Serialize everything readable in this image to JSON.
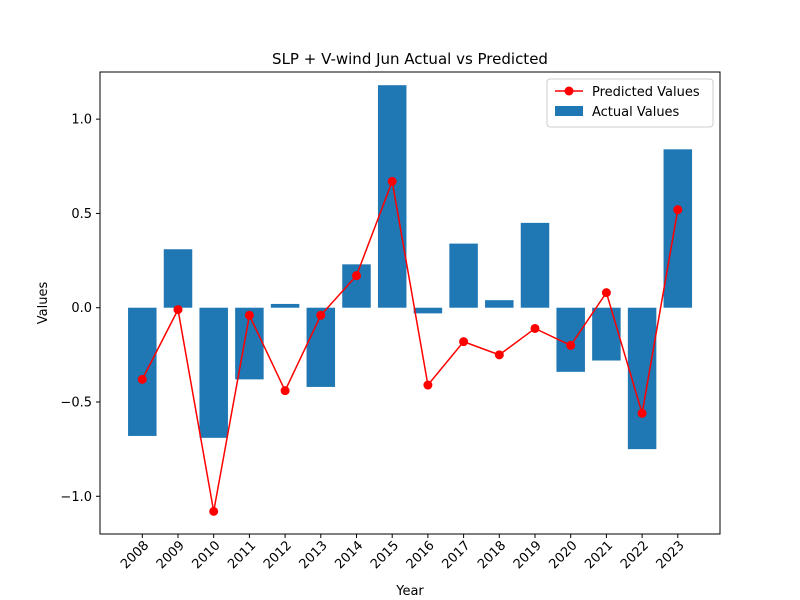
{
  "chart_data": {
    "type": "bar",
    "title": "SLP + V-wind Jun Actual vs Predicted",
    "xlabel": "Year",
    "ylabel": "Values",
    "ylim": [
      -1.2,
      1.25
    ],
    "yticks": [
      -1.0,
      -0.5,
      0.0,
      0.5,
      1.0
    ],
    "ytick_labels": [
      "−1.0",
      "−0.5",
      "0.0",
      "0.5",
      "1.0"
    ],
    "grid": false,
    "legend_position": "top-right",
    "categories": [
      "2008",
      "2009",
      "2010",
      "2011",
      "2012",
      "2013",
      "2014",
      "2015",
      "2016",
      "2017",
      "2018",
      "2019",
      "2020",
      "2021",
      "2022",
      "2023"
    ],
    "series": [
      {
        "name": "Actual Values",
        "kind": "bar",
        "color": "#1f77b4",
        "values": [
          -0.68,
          0.31,
          -0.69,
          -0.38,
          0.02,
          -0.42,
          0.23,
          1.18,
          -0.03,
          0.34,
          0.04,
          0.45,
          -0.34,
          -0.28,
          -0.75,
          0.84
        ]
      },
      {
        "name": "Predicted Values",
        "kind": "line",
        "color": "#ff0000",
        "marker": "circle",
        "values": [
          -0.38,
          -0.01,
          -1.08,
          -0.04,
          -0.44,
          -0.04,
          0.17,
          0.67,
          -0.41,
          -0.18,
          -0.25,
          -0.11,
          -0.2,
          0.08,
          -0.56,
          0.52
        ]
      }
    ]
  }
}
